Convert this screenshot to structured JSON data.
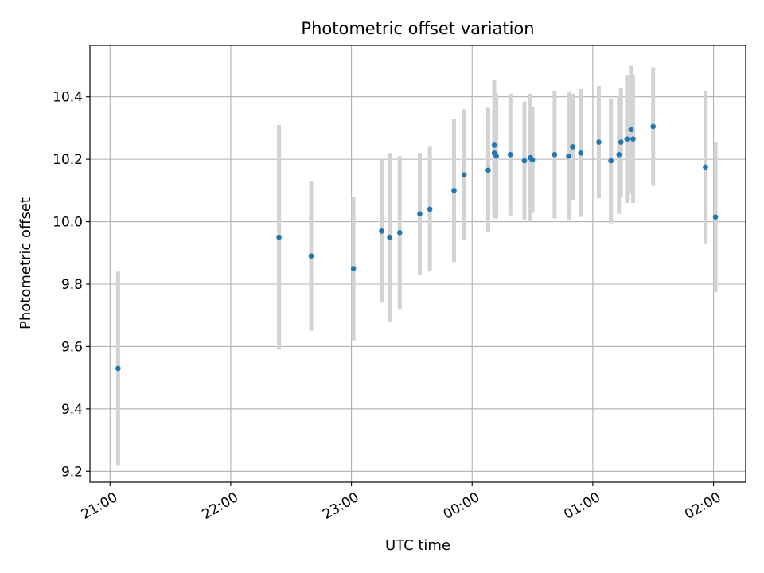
{
  "chart_data": {
    "type": "scatter",
    "title": "Photometric offset variation",
    "xlabel": "UTC time",
    "ylabel": "Photometric offset",
    "x_axis_type": "time",
    "xlim": [
      "20:50",
      "02:16"
    ],
    "ylim": [
      9.165,
      10.565
    ],
    "x_ticks": [
      "21:00",
      "22:00",
      "23:00",
      "00:00",
      "01:00",
      "02:00"
    ],
    "y_ticks": [
      9.2,
      9.4,
      9.6,
      9.8,
      10.0,
      10.2,
      10.4
    ],
    "y_tick_labels": [
      "9.2",
      "9.4",
      "9.6",
      "9.8",
      "10.0",
      "10.2",
      "10.4"
    ],
    "grid": true,
    "legend": "none",
    "marker_color": "#1f77b4",
    "errorbar_color": "#d3d3d3",
    "points": [
      {
        "t": "21:04",
        "y": 9.53,
        "err": 0.31
      },
      {
        "t": "22:24",
        "y": 9.95,
        "err": 0.36
      },
      {
        "t": "22:40",
        "y": 9.89,
        "err": 0.24
      },
      {
        "t": "23:01",
        "y": 9.85,
        "err": 0.23
      },
      {
        "t": "23:15",
        "y": 9.97,
        "err": 0.23
      },
      {
        "t": "23:19",
        "y": 9.95,
        "err": 0.27
      },
      {
        "t": "23:24",
        "y": 9.965,
        "err": 0.245
      },
      {
        "t": "23:34",
        "y": 10.025,
        "err": 0.195
      },
      {
        "t": "23:39",
        "y": 10.04,
        "err": 0.2
      },
      {
        "t": "23:51",
        "y": 10.1,
        "err": 0.23
      },
      {
        "t": "23:56",
        "y": 10.15,
        "err": 0.21
      },
      {
        "t": "00:08",
        "y": 10.165,
        "err": 0.2
      },
      {
        "t": "00:11",
        "y": 10.245,
        "err": 0.21
      },
      {
        "t": "00:11",
        "y": 10.22,
        "err": 0.21
      },
      {
        "t": "00:12",
        "y": 10.21,
        "err": 0.2
      },
      {
        "t": "00:19",
        "y": 10.215,
        "err": 0.195
      },
      {
        "t": "00:26",
        "y": 10.195,
        "err": 0.19
      },
      {
        "t": "00:29",
        "y": 10.205,
        "err": 0.205
      },
      {
        "t": "00:30",
        "y": 10.198,
        "err": 0.17
      },
      {
        "t": "00:41",
        "y": 10.215,
        "err": 0.205
      },
      {
        "t": "00:48",
        "y": 10.21,
        "err": 0.205
      },
      {
        "t": "00:50",
        "y": 10.24,
        "err": 0.17
      },
      {
        "t": "00:54",
        "y": 10.22,
        "err": 0.205
      },
      {
        "t": "01:03",
        "y": 10.255,
        "err": 0.18
      },
      {
        "t": "01:09",
        "y": 10.195,
        "err": 0.2
      },
      {
        "t": "01:13",
        "y": 10.215,
        "err": 0.19
      },
      {
        "t": "01:14",
        "y": 10.255,
        "err": 0.175
      },
      {
        "t": "01:17",
        "y": 10.265,
        "err": 0.205
      },
      {
        "t": "01:19",
        "y": 10.295,
        "err": 0.205
      },
      {
        "t": "01:20",
        "y": 10.265,
        "err": 0.205
      },
      {
        "t": "01:30",
        "y": 10.305,
        "err": 0.19
      },
      {
        "t": "01:56",
        "y": 10.175,
        "err": 0.245
      },
      {
        "t": "02:01",
        "y": 10.015,
        "err": 0.24
      }
    ]
  }
}
